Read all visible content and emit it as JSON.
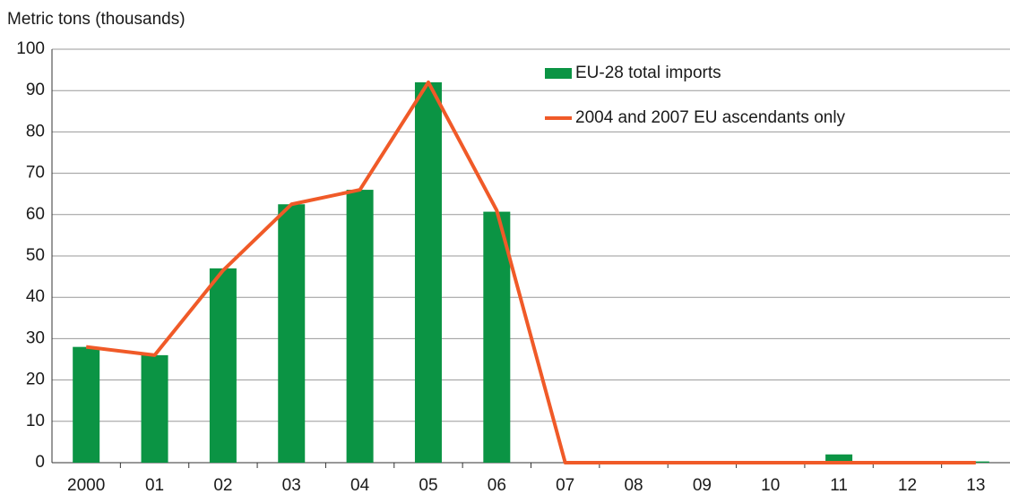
{
  "chart_data": {
    "type": "bar",
    "y_axis_label": "Metric tons (thousands)",
    "categories": [
      "2000",
      "01",
      "02",
      "03",
      "04",
      "05",
      "06",
      "07",
      "08",
      "09",
      "10",
      "11",
      "12",
      "13"
    ],
    "series": [
      {
        "name": "EU-28 total imports",
        "type": "bar",
        "color": "#0b9444",
        "values": [
          28,
          26,
          47,
          62.5,
          66,
          92,
          60.7,
          0,
          0,
          0,
          0,
          2,
          0,
          0.3
        ]
      },
      {
        "name": "2004 and 2007 EU ascendants only",
        "type": "line",
        "color": "#f05a28",
        "values": [
          28,
          26,
          46.5,
          62.5,
          66,
          92,
          61,
          0,
          0,
          0,
          0,
          0,
          0,
          0
        ]
      }
    ],
    "ylim": [
      0,
      100
    ],
    "yticks": [
      0,
      10,
      20,
      30,
      40,
      50,
      60,
      70,
      80,
      90,
      100
    ],
    "grid": true
  }
}
